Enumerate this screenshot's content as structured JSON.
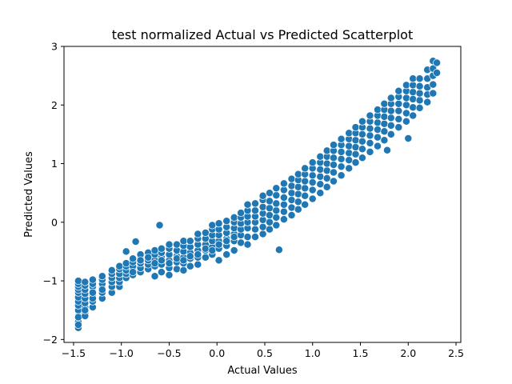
{
  "chart_data": {
    "type": "scatter",
    "title": "test normalized Actual vs Predicted Scatterplot",
    "xlabel": "Actual Values",
    "ylabel": "Predicted Values",
    "xlim": [
      -1.6,
      2.55
    ],
    "ylim": [
      -2.05,
      3.0
    ],
    "xticks": [
      -1.5,
      -1.0,
      -0.5,
      0.0,
      0.5,
      1.0,
      1.5,
      2.0,
      2.5
    ],
    "xtick_labels": [
      "−1.5",
      "−1.0",
      "−0.5",
      "0.0",
      "0.5",
      "1.0",
      "1.5",
      "2.0",
      "2.5"
    ],
    "yticks": [
      -2,
      -1,
      0,
      1,
      2,
      3
    ],
    "ytick_labels": [
      "−2",
      "−1",
      "0",
      "1",
      "2",
      "3"
    ],
    "grid": false,
    "point_color": "#1f77b4",
    "series": [
      {
        "x": [
          -1.45,
          -1.45,
          -1.45,
          -1.45,
          -1.45,
          -1.45,
          -1.45,
          -1.45,
          -1.45,
          -1.45,
          -1.45,
          -1.45,
          -1.45,
          -1.45,
          -1.38,
          -1.38,
          -1.38,
          -1.38,
          -1.38,
          -1.38,
          -1.38,
          -1.38,
          -1.38,
          -1.38,
          -1.3,
          -1.3,
          -1.3,
          -1.3,
          -1.3,
          -1.3,
          -1.3,
          -1.3,
          -1.3,
          -1.2,
          -1.2,
          -1.2,
          -1.2,
          -1.2,
          -1.2,
          -1.2,
          -1.1,
          -1.1,
          -1.1,
          -1.1,
          -1.1,
          -1.1,
          -1.02,
          -1.02,
          -1.02,
          -1.02,
          -1.02,
          -1.02,
          -0.95,
          -0.95,
          -0.95,
          -0.95,
          -0.95,
          -0.88,
          -0.88,
          -0.88,
          -0.88,
          -0.88,
          -0.88,
          -0.8,
          -0.8,
          -0.8,
          -0.8,
          -0.8,
          -0.8,
          -0.72,
          -0.72,
          -0.72,
          -0.72,
          -0.72,
          -0.72,
          -0.65,
          -0.65,
          -0.65,
          -0.65,
          -0.65,
          -0.65,
          -0.58,
          -0.58,
          -0.58,
          -0.58,
          -0.58,
          -0.58,
          -0.5,
          -0.5,
          -0.5,
          -0.5,
          -0.5,
          -0.5,
          -0.5,
          -0.42,
          -0.42,
          -0.42,
          -0.42,
          -0.42,
          -0.42,
          -0.35,
          -0.35,
          -0.35,
          -0.35,
          -0.35,
          -0.35,
          -0.35,
          -0.28,
          -0.28,
          -0.28,
          -0.28,
          -0.28,
          -0.28,
          -0.2,
          -0.2,
          -0.2,
          -0.2,
          -0.2,
          -0.2,
          -0.2,
          -0.12,
          -0.12,
          -0.12,
          -0.12,
          -0.12,
          -0.12,
          -0.05,
          -0.05,
          -0.05,
          -0.05,
          -0.05,
          -0.05,
          -0.05,
          0.02,
          0.02,
          0.02,
          0.02,
          0.02,
          0.02,
          0.02,
          0.1,
          0.1,
          0.1,
          0.1,
          0.1,
          0.1,
          0.1,
          0.18,
          0.18,
          0.18,
          0.18,
          0.18,
          0.18,
          0.18,
          0.25,
          0.25,
          0.25,
          0.25,
          0.25,
          0.25,
          0.32,
          0.32,
          0.32,
          0.32,
          0.32,
          0.32,
          0.32,
          0.4,
          0.4,
          0.4,
          0.4,
          0.4,
          0.4,
          0.48,
          0.48,
          0.48,
          0.48,
          0.48,
          0.48,
          0.48,
          0.55,
          0.55,
          0.55,
          0.55,
          0.55,
          0.55,
          0.62,
          0.62,
          0.62,
          0.62,
          0.62,
          0.62,
          0.7,
          0.7,
          0.7,
          0.7,
          0.7,
          0.7,
          0.78,
          0.78,
          0.78,
          0.78,
          0.78,
          0.78,
          0.85,
          0.85,
          0.85,
          0.85,
          0.85,
          0.85,
          0.92,
          0.92,
          0.92,
          0.92,
          0.92,
          0.92,
          1.0,
          1.0,
          1.0,
          1.0,
          1.0,
          1.0,
          1.08,
          1.08,
          1.08,
          1.08,
          1.08,
          1.08,
          1.15,
          1.15,
          1.15,
          1.15,
          1.15,
          1.15,
          1.22,
          1.22,
          1.22,
          1.22,
          1.22,
          1.22,
          1.3,
          1.3,
          1.3,
          1.3,
          1.3,
          1.3,
          1.38,
          1.38,
          1.38,
          1.38,
          1.38,
          1.38,
          1.45,
          1.45,
          1.45,
          1.45,
          1.45,
          1.45,
          1.52,
          1.52,
          1.52,
          1.52,
          1.52,
          1.52,
          1.6,
          1.6,
          1.6,
          1.6,
          1.6,
          1.6,
          1.68,
          1.68,
          1.68,
          1.68,
          1.68,
          1.68,
          1.75,
          1.75,
          1.75,
          1.75,
          1.75,
          1.75,
          1.82,
          1.82,
          1.82,
          1.82,
          1.82,
          1.82,
          1.9,
          1.9,
          1.9,
          1.9,
          1.9,
          1.9,
          1.98,
          1.98,
          1.98,
          1.98,
          1.98,
          1.98,
          2.05,
          2.05,
          2.05,
          2.05,
          2.05,
          2.05,
          2.12,
          2.12,
          2.12,
          2.12,
          2.12,
          2.2,
          2.2,
          2.2,
          2.2,
          2.2,
          2.26,
          2.26,
          2.26,
          2.26,
          2.26,
          2.3,
          2.3,
          -0.6,
          0.65,
          1.78,
          2.0,
          -0.85,
          -0.95
        ],
        "y": [
          -1.8,
          -1.7,
          -1.6,
          -1.5,
          -1.42,
          -1.35,
          -1.28,
          -1.2,
          -1.15,
          -1.1,
          -1.05,
          -1.0,
          -1.75,
          -1.62,
          -1.55,
          -1.45,
          -1.38,
          -1.3,
          -1.22,
          -1.15,
          -1.08,
          -1.02,
          -1.6,
          -1.5,
          -1.45,
          -1.35,
          -1.25,
          -1.18,
          -1.1,
          -1.05,
          -0.98,
          -1.3,
          -1.2,
          -1.3,
          -1.2,
          -1.12,
          -1.05,
          -0.98,
          -0.92,
          -1.15,
          -1.2,
          -1.1,
          -1.02,
          -0.95,
          -0.88,
          -0.82,
          -1.1,
          -1.02,
          -0.95,
          -0.88,
          -0.8,
          -0.75,
          -0.95,
          -0.88,
          -0.82,
          -0.75,
          -0.7,
          -0.9,
          -0.82,
          -0.75,
          -0.68,
          -0.62,
          -0.85,
          -0.85,
          -0.78,
          -0.7,
          -0.62,
          -0.55,
          -0.65,
          -0.8,
          -0.72,
          -0.65,
          -0.58,
          -0.52,
          -0.6,
          -0.92,
          -0.75,
          -0.65,
          -0.55,
          -0.48,
          -0.7,
          -0.85,
          -0.72,
          -0.6,
          -0.52,
          -0.45,
          -0.65,
          -0.9,
          -0.78,
          -0.65,
          -0.55,
          -0.45,
          -0.38,
          -0.7,
          -0.8,
          -0.68,
          -0.58,
          -0.48,
          -0.38,
          -0.62,
          -0.82,
          -0.7,
          -0.6,
          -0.5,
          -0.4,
          -0.32,
          -0.65,
          -0.75,
          -0.62,
          -0.52,
          -0.42,
          -0.32,
          -0.58,
          -0.72,
          -0.6,
          -0.48,
          -0.38,
          -0.28,
          -0.2,
          -0.55,
          -0.6,
          -0.48,
          -0.38,
          -0.28,
          -0.18,
          -0.45,
          -0.55,
          -0.42,
          -0.32,
          -0.22,
          -0.12,
          -0.05,
          -0.48,
          -0.65,
          -0.45,
          -0.32,
          -0.22,
          -0.12,
          -0.02,
          -0.38,
          -0.55,
          -0.4,
          -0.28,
          -0.18,
          -0.08,
          0.02,
          -0.32,
          -0.48,
          -0.32,
          -0.2,
          -0.1,
          0.0,
          0.08,
          -0.25,
          -0.35,
          -0.22,
          -0.12,
          -0.02,
          0.08,
          0.16,
          -0.38,
          -0.25,
          -0.1,
          0.0,
          0.1,
          0.2,
          0.3,
          -0.25,
          -0.12,
          0.0,
          0.1,
          0.2,
          0.32,
          -0.2,
          -0.08,
          0.04,
          0.15,
          0.26,
          0.38,
          0.45,
          -0.12,
          0.0,
          0.12,
          0.24,
          0.36,
          0.5,
          -0.05,
          0.08,
          0.2,
          0.32,
          0.46,
          0.58,
          0.05,
          0.18,
          0.3,
          0.42,
          0.55,
          0.66,
          0.12,
          0.25,
          0.38,
          0.5,
          0.62,
          0.74,
          0.22,
          0.35,
          0.48,
          0.6,
          0.72,
          0.82,
          0.3,
          0.45,
          0.58,
          0.7,
          0.82,
          0.92,
          0.4,
          0.55,
          0.68,
          0.8,
          0.92,
          1.02,
          0.5,
          0.65,
          0.78,
          0.9,
          1.02,
          1.12,
          0.6,
          0.75,
          0.88,
          1.0,
          1.12,
          1.22,
          0.7,
          0.85,
          0.98,
          1.1,
          1.22,
          1.32,
          0.8,
          0.95,
          1.08,
          1.2,
          1.32,
          1.42,
          0.92,
          1.06,
          1.18,
          1.3,
          1.42,
          1.52,
          1.02,
          1.16,
          1.28,
          1.4,
          1.52,
          1.62,
          1.1,
          1.25,
          1.38,
          1.5,
          1.62,
          1.72,
          1.2,
          1.35,
          1.48,
          1.6,
          1.72,
          1.82,
          1.3,
          1.45,
          1.58,
          1.7,
          1.82,
          1.92,
          1.4,
          1.55,
          1.68,
          1.8,
          1.92,
          2.02,
          1.5,
          1.65,
          1.78,
          1.9,
          2.02,
          2.12,
          1.62,
          1.76,
          1.9,
          2.02,
          2.14,
          2.24,
          1.72,
          1.86,
          2.0,
          2.12,
          2.24,
          2.34,
          1.82,
          1.96,
          2.1,
          2.22,
          2.34,
          2.45,
          1.95,
          2.08,
          2.2,
          2.32,
          2.45,
          2.05,
          2.18,
          2.3,
          2.45,
          2.6,
          2.2,
          2.35,
          2.5,
          2.62,
          2.75,
          2.55,
          2.72,
          -0.05,
          -0.47,
          1.23,
          1.43,
          -0.33,
          -0.5
        ]
      }
    ]
  }
}
